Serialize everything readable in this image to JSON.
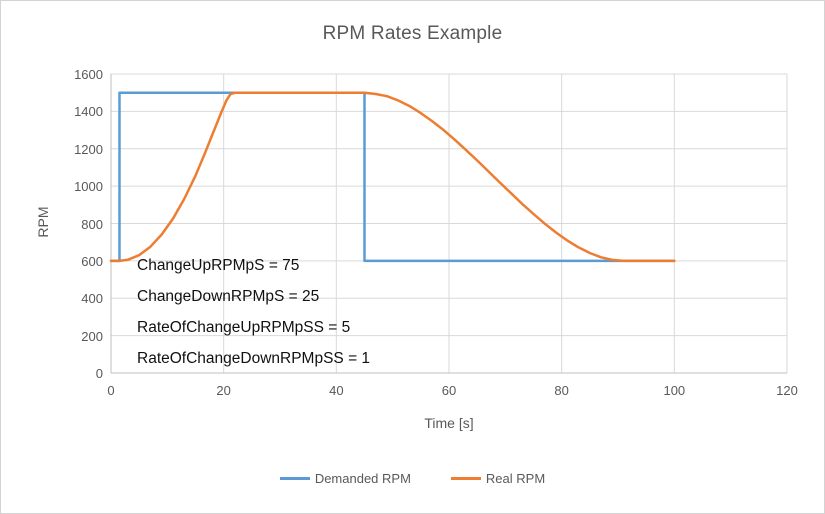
{
  "chart_data": {
    "type": "line",
    "title": "RPM Rates Example",
    "xlabel": "Time [s]",
    "ylabel": "RPM",
    "xlim": [
      0,
      120
    ],
    "ylim": [
      0,
      1600
    ],
    "xticks": [
      0,
      20,
      40,
      60,
      80,
      100,
      120
    ],
    "yticks": [
      0,
      200,
      400,
      600,
      800,
      1000,
      1200,
      1400,
      1600
    ],
    "grid": true,
    "legend_position": "bottom",
    "annotations": [
      "ChangeUpRPMpS = 75",
      "ChangeDownRPMpS = 25",
      "RateOfChangeUpRPMpSS = 5",
      "RateOfChangeDownRPMpSS = 1"
    ],
    "style": {
      "gridline_color": "#d9d9d9",
      "axis_line_color": "#bfbfbf",
      "title_color": "#595959",
      "axis_text_color": "#595959",
      "annotation_color": "#111111"
    },
    "series": [
      {
        "name": "Demanded RPM",
        "color": "#5b9bd5",
        "points": [
          [
            0,
            600
          ],
          [
            1.5,
            600
          ],
          [
            1.5,
            1500
          ],
          [
            45,
            1500
          ],
          [
            45,
            600
          ],
          [
            100,
            600
          ]
        ]
      },
      {
        "name": "Real RPM",
        "color": "#ed7d31",
        "points": [
          [
            0,
            600
          ],
          [
            1.5,
            600
          ],
          [
            3,
            606
          ],
          [
            5,
            631
          ],
          [
            7,
            676
          ],
          [
            9,
            741
          ],
          [
            11,
            826
          ],
          [
            13,
            931
          ],
          [
            15,
            1056
          ],
          [
            16.5,
            1163
          ],
          [
            18,
            1276
          ],
          [
            19.5,
            1389
          ],
          [
            20.5,
            1459
          ],
          [
            21.2,
            1492
          ],
          [
            22,
            1500
          ],
          [
            45,
            1500
          ],
          [
            47,
            1493
          ],
          [
            49,
            1481
          ],
          [
            51,
            1458
          ],
          [
            53,
            1428
          ],
          [
            55,
            1391
          ],
          [
            57,
            1348
          ],
          [
            59,
            1301
          ],
          [
            61,
            1249
          ],
          [
            63,
            1194
          ],
          [
            65,
            1137
          ],
          [
            67,
            1079
          ],
          [
            69,
            1020
          ],
          [
            71,
            962
          ],
          [
            73,
            905
          ],
          [
            75,
            851
          ],
          [
            77,
            799
          ],
          [
            79,
            752
          ],
          [
            81,
            709
          ],
          [
            83,
            672
          ],
          [
            85,
            642
          ],
          [
            87,
            619
          ],
          [
            89,
            605
          ],
          [
            91,
            600
          ],
          [
            100,
            600
          ]
        ]
      }
    ]
  }
}
